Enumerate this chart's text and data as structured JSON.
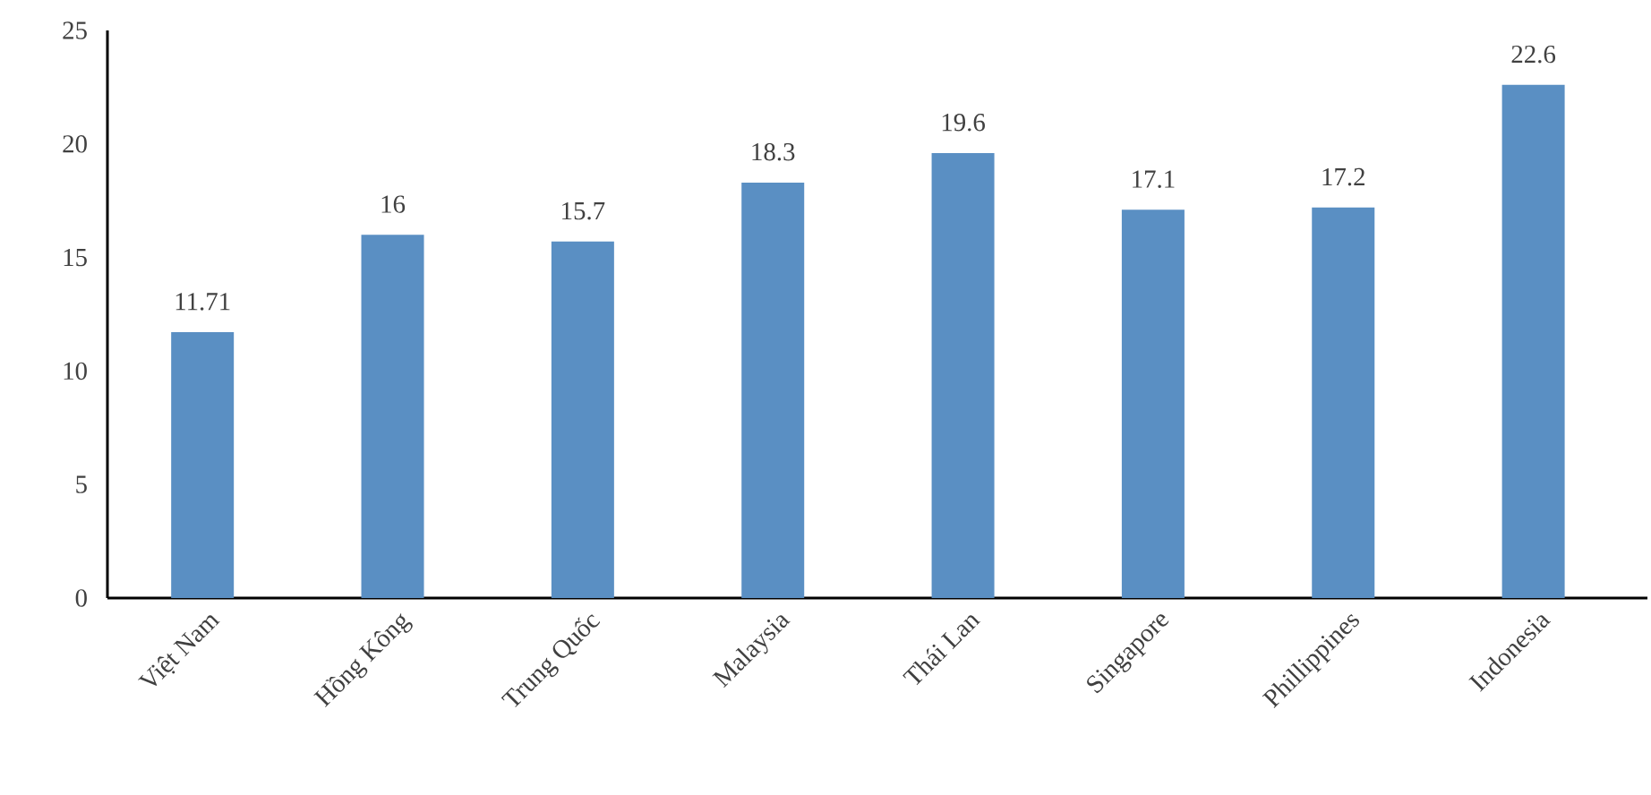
{
  "chart_data": {
    "type": "bar",
    "categories": [
      "Việt Nam",
      "Hồng Kông",
      "Trung Quốc",
      "Malaysia",
      "Thái Lan",
      "Singapore",
      "Phillippines",
      "Indonesia"
    ],
    "values": [
      11.71,
      16,
      15.7,
      18.3,
      19.6,
      17.1,
      17.2,
      22.6
    ],
    "value_labels": [
      "11.71",
      "16",
      "15.7",
      "18.3",
      "19.6",
      "17.1",
      "17.2",
      "22.6"
    ],
    "color": "#5a8fc3",
    "ylim": [
      0,
      25
    ],
    "yticks": [
      0,
      5,
      10,
      15,
      20,
      25
    ],
    "grid": false
  }
}
